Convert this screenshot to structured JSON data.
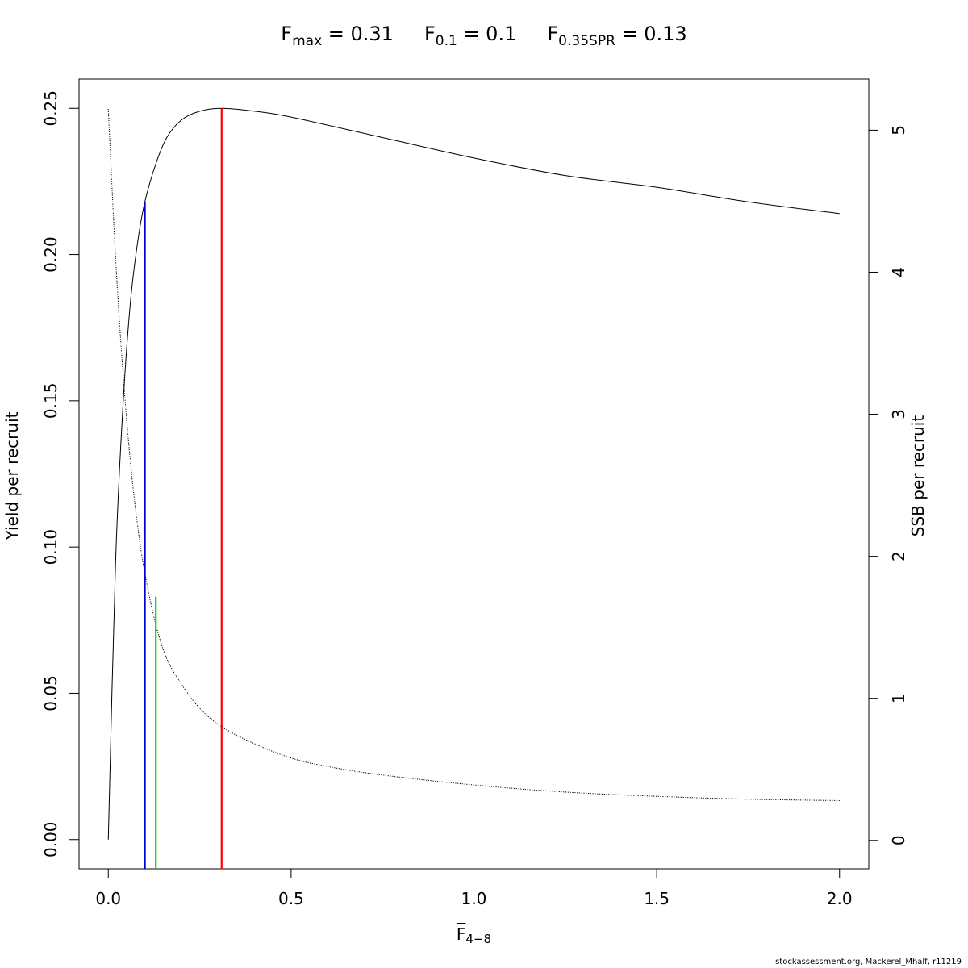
{
  "title": {
    "fmax_symbol": "F",
    "fmax_sub": "max",
    "fmax_text": " = 0.31",
    "f01_symbol": "F",
    "f01_sub": "0.1",
    "f01_text": " = 0.1",
    "fspr_symbol": "F",
    "fspr_sub": "0.35SPR",
    "fspr_text": " = 0.13"
  },
  "xlabel": {
    "symbol": "F",
    "sub": "4−8"
  },
  "credit": "stockassessment.org, Mackerel_Mhalf, r11219",
  "chart_data": {
    "type": "line",
    "xlim": [
      -0.08,
      2.08
    ],
    "ylim": [
      -0.01,
      0.26
    ],
    "ylim_right": [
      -0.2,
      5.36
    ],
    "xticks": [
      "0.0",
      "0.5",
      "1.0",
      "1.5",
      "2.0"
    ],
    "yticks_left": [
      "0.00",
      "0.05",
      "0.10",
      "0.15",
      "0.20",
      "0.25"
    ],
    "yticks_right": [
      "0",
      "1",
      "2",
      "3",
      "4",
      "5"
    ],
    "ylabel_left": "Yield per recruit",
    "ylabel_right": "SSB per recruit",
    "grid": false,
    "colors": {
      "fmax": "#ff0000",
      "f01": "#0000cc",
      "fspr": "#00dd00",
      "curve": "#000000"
    },
    "series": [
      {
        "style": "solid",
        "axis": "left",
        "x": [
          0.0,
          0.02,
          0.04,
          0.06,
          0.08,
          0.1,
          0.13,
          0.16,
          0.2,
          0.25,
          0.31,
          0.4,
          0.5,
          0.75,
          1.0,
          1.25,
          1.5,
          1.75,
          2.0
        ],
        "y": [
          0.0,
          0.095,
          0.148,
          0.183,
          0.204,
          0.218,
          0.231,
          0.24,
          0.246,
          0.249,
          0.25,
          0.249,
          0.247,
          0.24,
          0.233,
          0.227,
          0.223,
          0.218,
          0.214
        ]
      },
      {
        "style": "dotted",
        "axis": "right",
        "x": [
          0.0,
          0.02,
          0.04,
          0.06,
          0.08,
          0.1,
          0.13,
          0.16,
          0.2,
          0.25,
          0.31,
          0.4,
          0.5,
          0.6,
          0.75,
          1.0,
          1.25,
          1.5,
          1.75,
          2.0
        ],
        "y": [
          5.15,
          4.1,
          3.3,
          2.68,
          2.22,
          1.88,
          1.52,
          1.28,
          1.1,
          0.93,
          0.8,
          0.68,
          0.58,
          0.52,
          0.46,
          0.39,
          0.34,
          0.31,
          0.29,
          0.28
        ]
      }
    ],
    "reference_lines": [
      {
        "name": "fmax",
        "x": 0.31,
        "y_top": 0.25,
        "color": "#ff0000"
      },
      {
        "name": "f01",
        "x": 0.1,
        "y_top": 0.218,
        "color": "#0000cc"
      },
      {
        "name": "fspr",
        "x": 0.13,
        "y_top": 0.083,
        "color": "#00dd00"
      }
    ]
  }
}
